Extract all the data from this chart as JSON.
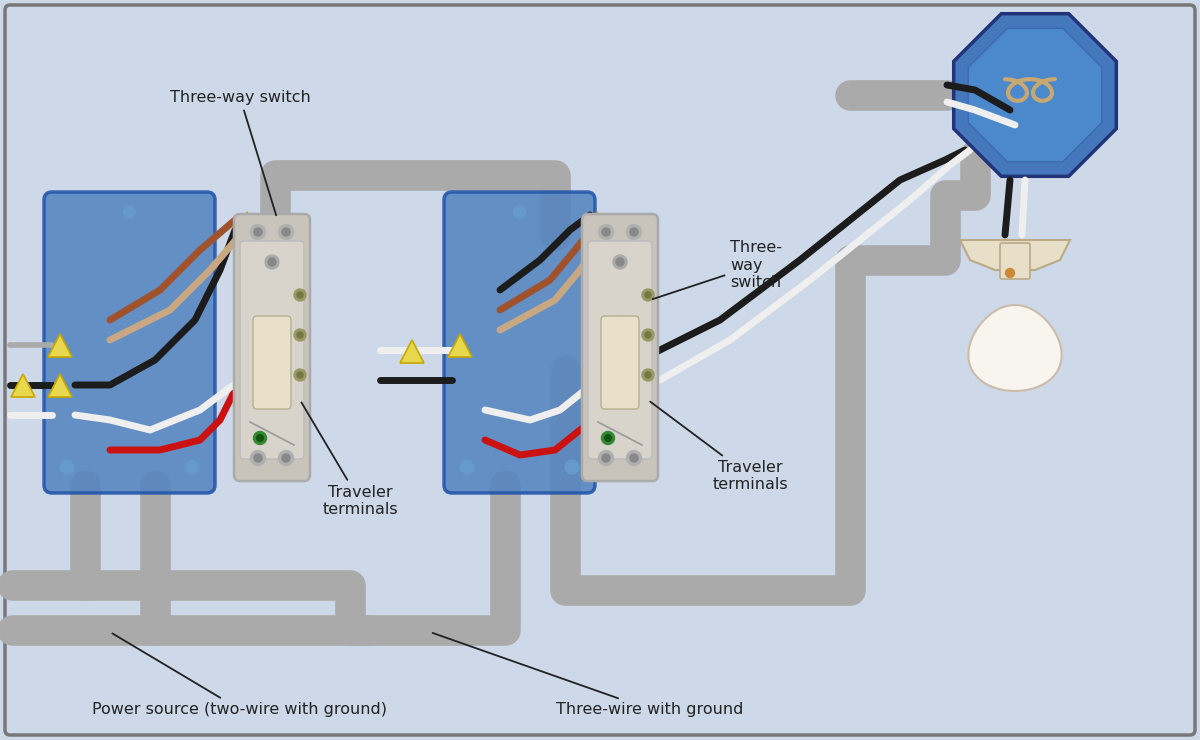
{
  "bg": "#cdd8e8",
  "border": "#888888",
  "labels": {
    "sw1": "Three-way switch",
    "sw2": "Three-\nway\nswitch",
    "trav1": "Traveler\nterminals",
    "trav2": "Traveler\nterminals",
    "power": "Power source (two-wire with ground)",
    "three_wire": "Three-wire with ground"
  },
  "fs": 11.5,
  "lc": "#222222",
  "wires": {
    "black": "#1c1c1c",
    "white": "#efefef",
    "red": "#cc1111",
    "brown": "#a0522d",
    "tan": "#c8a882",
    "gray": "#999999",
    "green": "#228822",
    "yellow": "#e8d84d"
  },
  "jbox_fill": "#5585c0",
  "jbox_edge": "#2255aa",
  "oct_fill": "#4477bb",
  "oct_edge": "#223377",
  "sw_body": "#d8d0c0",
  "sw_edge": "#888888",
  "sw_paddle": "#e8e0c8",
  "bulb_fill": "#f8f5ee",
  "bulb_edge": "#ccbbaa",
  "socket_fill": "#e8dfc8",
  "socket_edge": "#bbaa88"
}
